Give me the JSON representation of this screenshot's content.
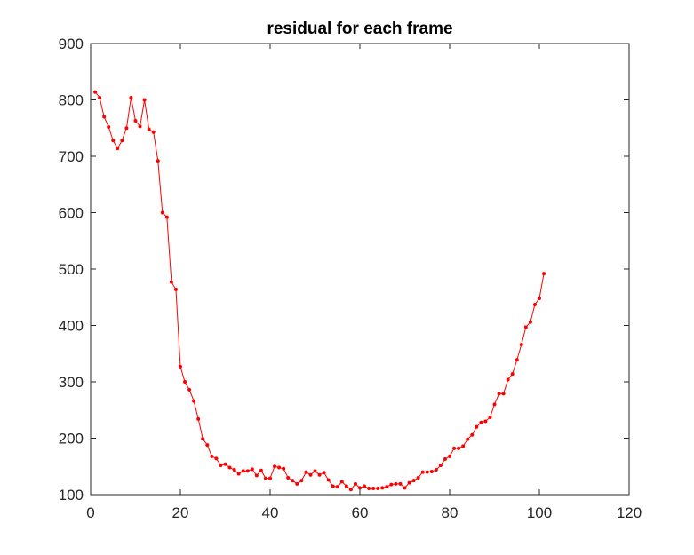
{
  "chart_data": {
    "type": "line",
    "title": "residual for each frame",
    "xlabel": "",
    "ylabel": "",
    "xlim": [
      0,
      120
    ],
    "ylim": [
      100,
      900
    ],
    "xticks": [
      "0",
      "20",
      "40",
      "60",
      "80",
      "100",
      "120"
    ],
    "yticks": [
      "100",
      "200",
      "300",
      "400",
      "500",
      "600",
      "700",
      "800",
      "900"
    ],
    "grid": false,
    "legend": "none",
    "series": [
      {
        "color": "#ff0000",
        "marker": "dot",
        "x": [
          1,
          2,
          3,
          4,
          5,
          6,
          7,
          8,
          9,
          10,
          11,
          12,
          13,
          14,
          15,
          16,
          17,
          18,
          19,
          20,
          21,
          22,
          23,
          24,
          25,
          26,
          27,
          28,
          29,
          30,
          31,
          32,
          33,
          34,
          35,
          36,
          37,
          38,
          39,
          40,
          41,
          42,
          43,
          44,
          45,
          46,
          47,
          48,
          49,
          50,
          51,
          52,
          53,
          54,
          55,
          56,
          57,
          58,
          59,
          60,
          61,
          62,
          63,
          64,
          65,
          66,
          67,
          68,
          69,
          70,
          71,
          72,
          73,
          74,
          75,
          76,
          77,
          78,
          79,
          80,
          81,
          82,
          83,
          84,
          85,
          86,
          87,
          88,
          89,
          90,
          91,
          92,
          93,
          94,
          95,
          96,
          97,
          98,
          99,
          100,
          101
        ],
        "y": [
          814,
          804,
          770,
          752,
          728,
          714,
          728,
          750,
          804,
          763,
          753,
          800,
          748,
          743,
          692,
          600,
          592,
          477,
          464,
          327,
          300,
          286,
          266,
          234,
          199,
          188,
          168,
          164,
          152,
          154,
          148,
          144,
          137,
          142,
          142,
          145,
          134,
          143,
          129,
          129,
          150,
          148,
          146,
          130,
          125,
          119,
          125,
          140,
          135,
          142,
          135,
          139,
          126,
          115,
          114,
          123,
          115,
          109,
          119,
          112,
          115,
          111,
          111,
          111,
          112,
          114,
          118,
          119,
          119,
          112,
          121,
          125,
          130,
          140,
          140,
          141,
          144,
          152,
          163,
          168,
          182,
          182,
          186,
          198,
          206,
          220,
          228,
          230,
          237,
          260,
          279,
          279,
          304,
          314,
          339,
          366,
          397,
          406,
          437,
          448,
          492
        ]
      }
    ]
  }
}
